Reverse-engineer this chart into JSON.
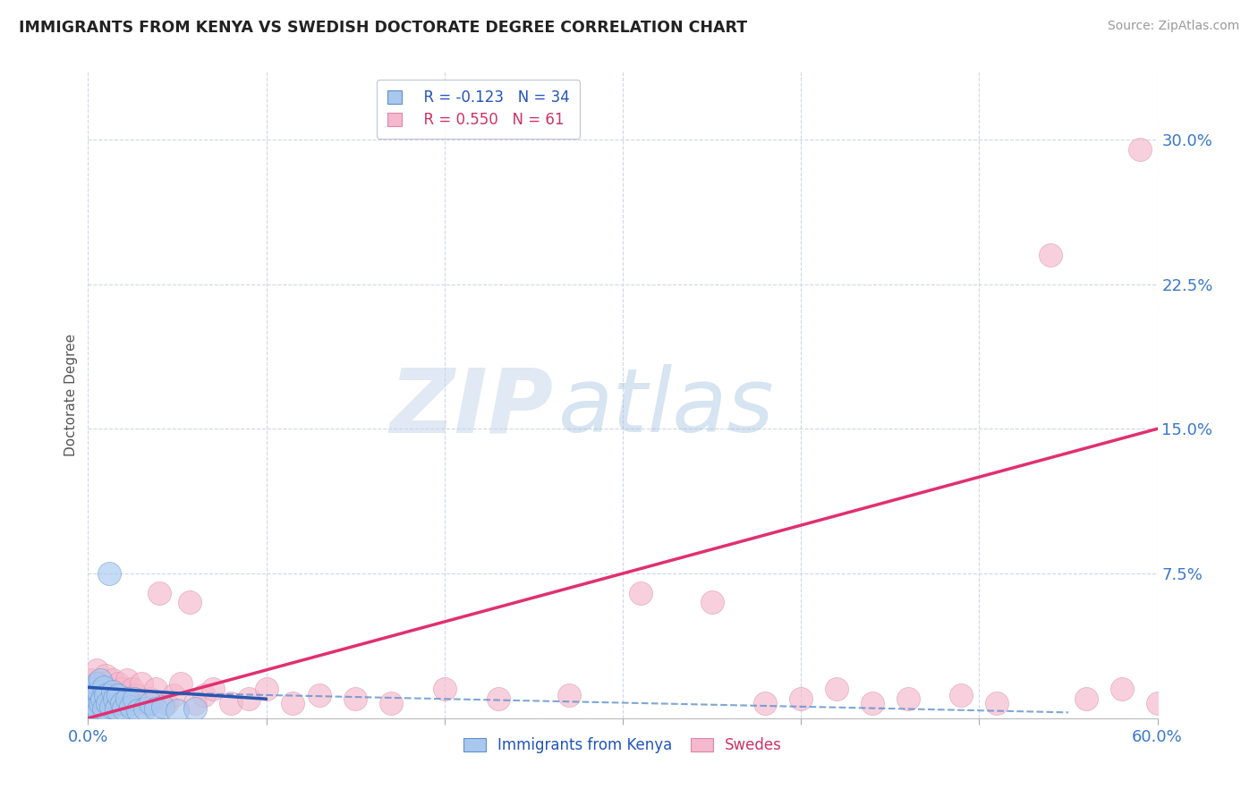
{
  "title": "IMMIGRANTS FROM KENYA VS SWEDISH DOCTORATE DEGREE CORRELATION CHART",
  "source": "Source: ZipAtlas.com",
  "ylabel": "Doctorate Degree",
  "legend_1_label": "Immigrants from Kenya",
  "legend_1_r": "R = -0.123",
  "legend_1_n": "N = 34",
  "legend_2_label": "Swedes",
  "legend_2_r": "R = 0.550",
  "legend_2_n": "N = 61",
  "blue_color": "#a8c8f0",
  "blue_edge": "#6090c8",
  "pink_color": "#f5b8cc",
  "pink_edge": "#d888a8",
  "trend_blue_solid_color": "#2855b0",
  "trend_blue_dash_color": "#6090cc",
  "trend_pink_color": "#e03070",
  "watermark_zip": "ZIP",
  "watermark_atlas": "atlas",
  "xlim": [
    0.0,
    0.6
  ],
  "ylim": [
    0.0,
    0.335
  ],
  "yticks": [
    0.0,
    0.075,
    0.15,
    0.225,
    0.3
  ],
  "ytick_labels": [
    "",
    "7.5%",
    "15.0%",
    "22.5%",
    "30.0%"
  ],
  "xtick_vals": [
    0.0,
    0.1,
    0.2,
    0.3,
    0.4,
    0.5,
    0.6
  ],
  "xtick_labels": [
    "0.0%",
    "",
    "",
    "",
    "",
    "",
    "60.0%"
  ],
  "blue_scatter_x": [
    0.001,
    0.002,
    0.003,
    0.003,
    0.004,
    0.005,
    0.005,
    0.006,
    0.006,
    0.007,
    0.007,
    0.008,
    0.009,
    0.009,
    0.01,
    0.011,
    0.012,
    0.013,
    0.014,
    0.015,
    0.016,
    0.017,
    0.019,
    0.02,
    0.022,
    0.024,
    0.026,
    0.028,
    0.032,
    0.035,
    0.038,
    0.042,
    0.05,
    0.06
  ],
  "blue_scatter_y": [
    0.008,
    0.012,
    0.005,
    0.015,
    0.01,
    0.006,
    0.018,
    0.004,
    0.014,
    0.008,
    0.02,
    0.01,
    0.005,
    0.016,
    0.012,
    0.008,
    0.075,
    0.006,
    0.014,
    0.01,
    0.005,
    0.012,
    0.008,
    0.005,
    0.01,
    0.006,
    0.01,
    0.004,
    0.005,
    0.008,
    0.005,
    0.006,
    0.004,
    0.005
  ],
  "pink_scatter_x": [
    0.001,
    0.002,
    0.003,
    0.004,
    0.005,
    0.005,
    0.006,
    0.007,
    0.008,
    0.009,
    0.01,
    0.011,
    0.012,
    0.013,
    0.014,
    0.015,
    0.016,
    0.017,
    0.018,
    0.019,
    0.02,
    0.022,
    0.024,
    0.025,
    0.027,
    0.03,
    0.033,
    0.035,
    0.038,
    0.04,
    0.044,
    0.048,
    0.052,
    0.057,
    0.06,
    0.065,
    0.07,
    0.08,
    0.09,
    0.1,
    0.115,
    0.13,
    0.15,
    0.17,
    0.2,
    0.23,
    0.27,
    0.31,
    0.35,
    0.38,
    0.4,
    0.42,
    0.44,
    0.46,
    0.49,
    0.51,
    0.54,
    0.56,
    0.58,
    0.59,
    0.6
  ],
  "pink_scatter_y": [
    0.01,
    0.02,
    0.008,
    0.015,
    0.01,
    0.025,
    0.008,
    0.018,
    0.012,
    0.01,
    0.022,
    0.008,
    0.015,
    0.01,
    0.02,
    0.008,
    0.012,
    0.018,
    0.008,
    0.015,
    0.01,
    0.02,
    0.008,
    0.015,
    0.012,
    0.018,
    0.008,
    0.01,
    0.015,
    0.065,
    0.008,
    0.012,
    0.018,
    0.06,
    0.008,
    0.012,
    0.015,
    0.008,
    0.01,
    0.015,
    0.008,
    0.012,
    0.01,
    0.008,
    0.015,
    0.01,
    0.012,
    0.065,
    0.06,
    0.008,
    0.01,
    0.015,
    0.008,
    0.01,
    0.012,
    0.008,
    0.24,
    0.01,
    0.015,
    0.295,
    0.008
  ],
  "trend_pink_x0": 0.0,
  "trend_pink_y0": 0.0,
  "trend_pink_x1": 0.6,
  "trend_pink_y1": 0.15,
  "trend_blue_solid_x0": 0.0,
  "trend_blue_solid_y0": 0.016,
  "trend_blue_solid_x1": 0.1,
  "trend_blue_solid_y1": 0.01,
  "trend_blue_dash_x0": 0.05,
  "trend_blue_dash_y0": 0.013,
  "trend_blue_dash_x1": 0.55,
  "trend_blue_dash_y1": 0.003
}
